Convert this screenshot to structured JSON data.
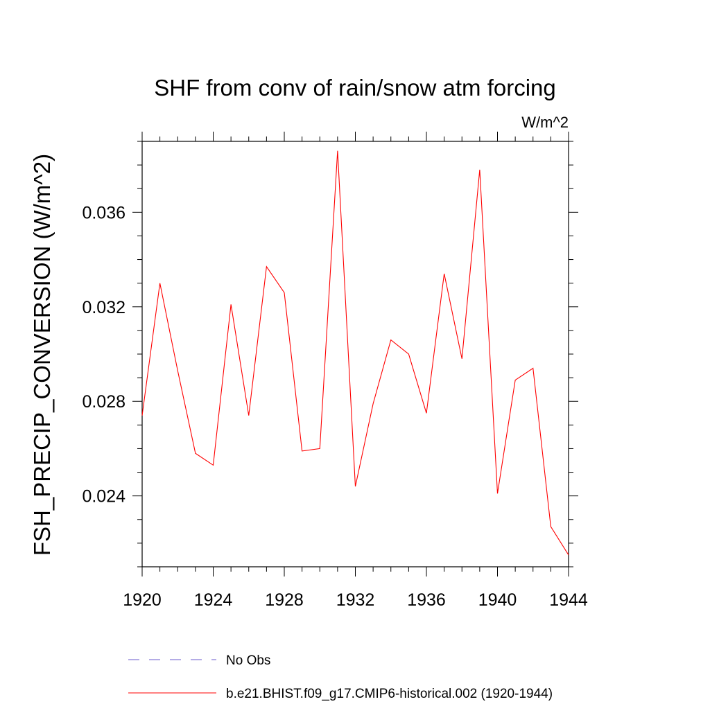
{
  "chart_data": {
    "type": "line",
    "title": "SHF from conv of rain/snow atm forcing",
    "units_label": "W/m^2",
    "ylabel": "FSH_PRECIP_CONVERSION  (W/m^2)",
    "xlabel": "",
    "xlim": [
      1920,
      1944
    ],
    "ylim": [
      0.021,
      0.039
    ],
    "x_ticks": [
      1920,
      1924,
      1928,
      1932,
      1936,
      1940,
      1944
    ],
    "x_tick_labels": [
      "1920",
      "1924",
      "1928",
      "1932",
      "1936",
      "1940",
      "1944"
    ],
    "y_ticks": [
      0.024,
      0.028,
      0.032,
      0.036
    ],
    "y_tick_labels": [
      "0.024",
      "0.028",
      "0.032",
      "0.036"
    ],
    "grid": false,
    "legend_position": "bottom",
    "series": [
      {
        "name": "No Obs",
        "color": "#6a5acd",
        "dash": "dashed",
        "x": [],
        "values": []
      },
      {
        "name": "b.e21.BHIST.f09_g17.CMIP6-historical.002 (1920-1944)",
        "color": "#ff0000",
        "dash": "solid",
        "x": [
          1920,
          1921,
          1922,
          1923,
          1924,
          1925,
          1926,
          1927,
          1928,
          1929,
          1930,
          1931,
          1932,
          1933,
          1934,
          1935,
          1936,
          1937,
          1938,
          1939,
          1940,
          1941,
          1942,
          1943,
          1944
        ],
        "values": [
          0.0274,
          0.033,
          0.0293,
          0.0258,
          0.0253,
          0.0321,
          0.0274,
          0.0337,
          0.0326,
          0.0259,
          0.026,
          0.0386,
          0.0244,
          0.0279,
          0.0306,
          0.03,
          0.0275,
          0.0334,
          0.0298,
          0.0378,
          0.0241,
          0.0289,
          0.0294,
          0.0227,
          0.0215
        ]
      }
    ]
  }
}
